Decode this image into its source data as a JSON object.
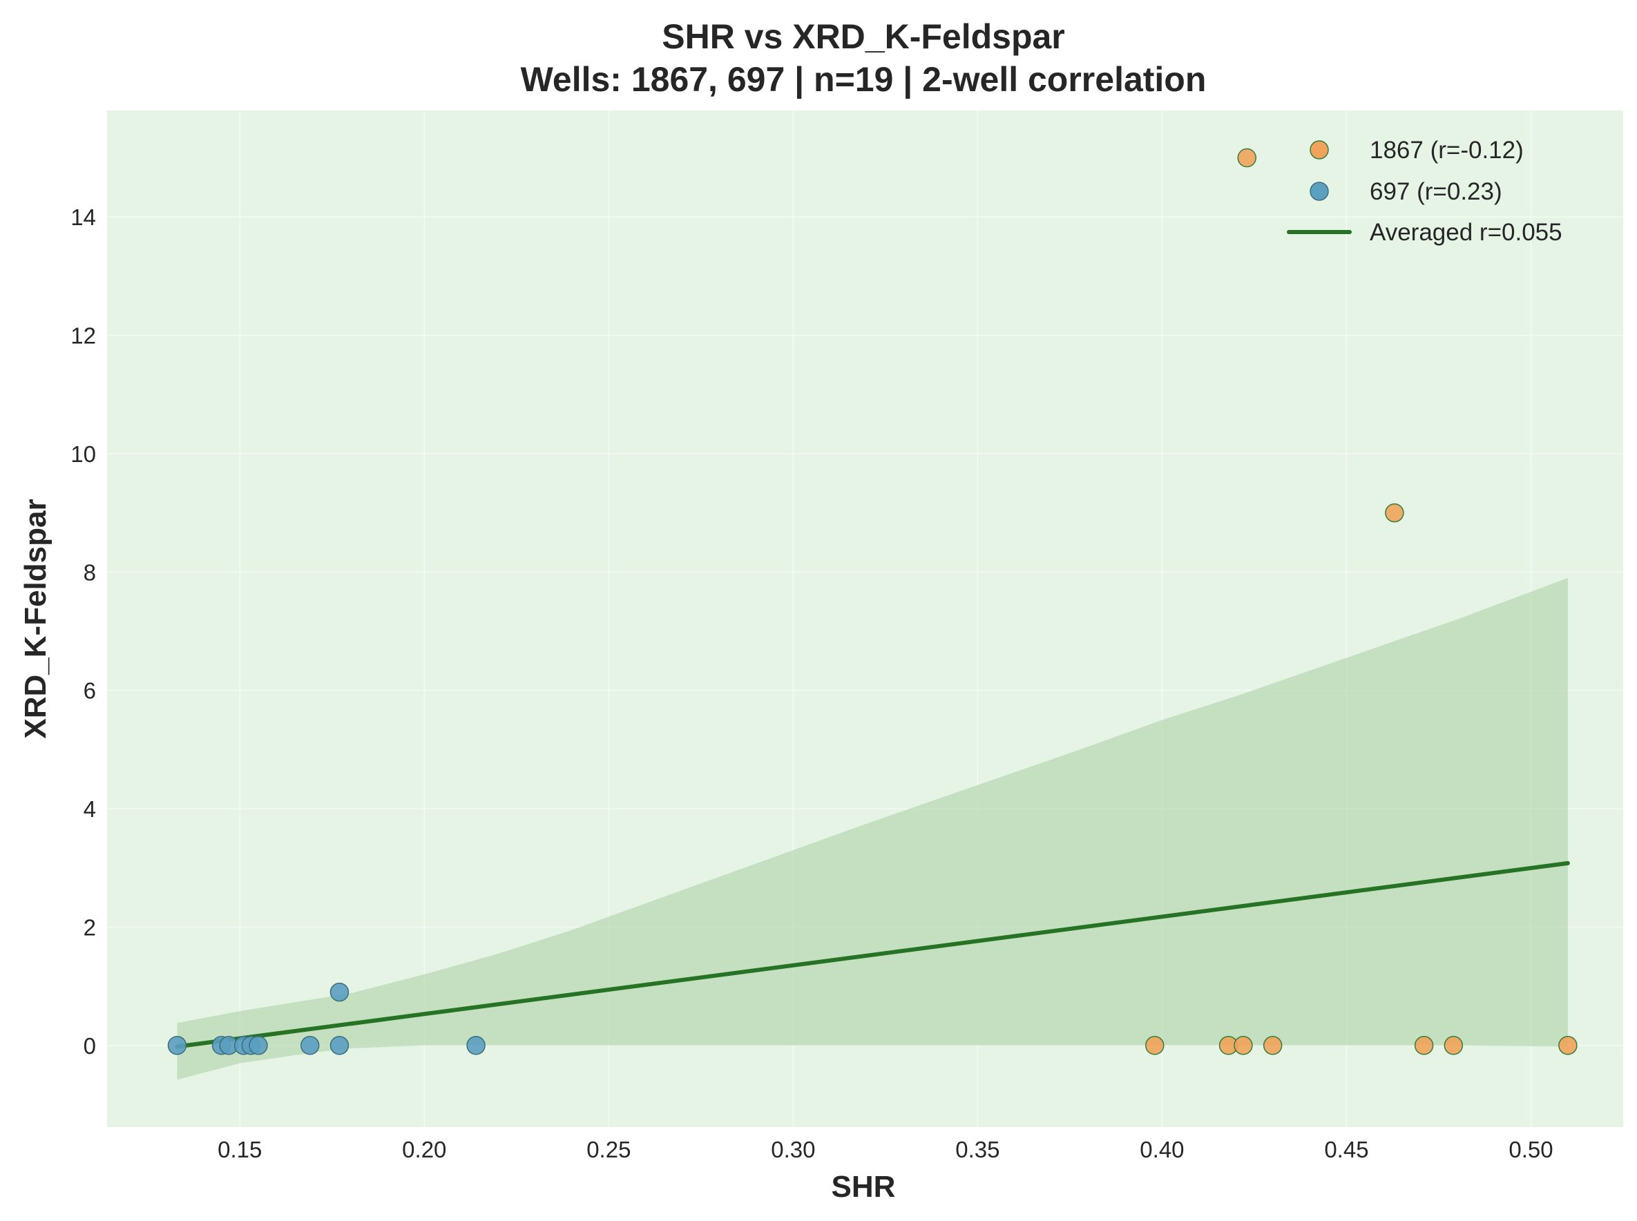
{
  "chart_data": {
    "type": "scatter",
    "title": "SHR vs XRD_K-Feldspar",
    "subtitle": "Wells: 1867, 697 | n=19 | 2-well correlation",
    "xlabel": "SHR",
    "ylabel": "XRD_K-Feldspar",
    "xlim": [
      0.114,
      0.525
    ],
    "ylim": [
      -1.38,
      15.8
    ],
    "x_ticks": [
      0.15,
      0.2,
      0.25,
      0.3,
      0.35,
      0.4,
      0.45,
      0.5
    ],
    "x_tick_labels": [
      "0.15",
      "0.20",
      "0.25",
      "0.30",
      "0.35",
      "0.40",
      "0.45",
      "0.50"
    ],
    "y_ticks": [
      0,
      2,
      4,
      6,
      8,
      10,
      12,
      14
    ],
    "y_tick_labels": [
      "0",
      "2",
      "4",
      "6",
      "8",
      "10",
      "12",
      "14"
    ],
    "grid": true,
    "legend_position": "top-right",
    "background_color": "#e6f4e6",
    "series": [
      {
        "name": "1867 (r=-0.12)",
        "color": "#f0a35a",
        "edge_color": "#3a7a3a",
        "points": [
          {
            "x": 0.398,
            "y": 0.0
          },
          {
            "x": 0.418,
            "y": 0.0
          },
          {
            "x": 0.422,
            "y": 0.0
          },
          {
            "x": 0.423,
            "y": 15.0
          },
          {
            "x": 0.43,
            "y": 0.0
          },
          {
            "x": 0.463,
            "y": 9.0
          },
          {
            "x": 0.471,
            "y": 0.0
          },
          {
            "x": 0.479,
            "y": 0.0
          },
          {
            "x": 0.51,
            "y": 0.0
          }
        ]
      },
      {
        "name": "697 (r=0.23)",
        "color": "#5c9fc1",
        "edge_color": "#3a6e7a",
        "points": [
          {
            "x": 0.133,
            "y": 0.0
          },
          {
            "x": 0.145,
            "y": 0.0
          },
          {
            "x": 0.147,
            "y": 0.0
          },
          {
            "x": 0.151,
            "y": 0.0
          },
          {
            "x": 0.153,
            "y": 0.0
          },
          {
            "x": 0.155,
            "y": 0.0
          },
          {
            "x": 0.169,
            "y": 0.0
          },
          {
            "x": 0.177,
            "y": 0.0
          },
          {
            "x": 0.177,
            "y": 0.9
          },
          {
            "x": 0.214,
            "y": 0.0
          }
        ]
      }
    ],
    "trend_line": {
      "name": "Averaged r=0.055",
      "color": "#267326",
      "x": [
        0.133,
        0.51
      ],
      "y": [
        -0.02,
        3.08
      ]
    },
    "confidence_band": {
      "color": "#a8cfa0",
      "x": [
        0.133,
        0.15,
        0.17,
        0.18,
        0.2,
        0.22,
        0.24,
        0.26,
        0.28,
        0.3,
        0.32,
        0.35,
        0.38,
        0.4,
        0.42,
        0.45,
        0.48,
        0.51
      ],
      "upper": [
        0.38,
        0.58,
        0.78,
        0.88,
        1.2,
        1.55,
        1.95,
        2.4,
        2.85,
        3.3,
        3.75,
        4.4,
        5.05,
        5.5,
        5.9,
        6.55,
        7.2,
        7.9
      ],
      "lower": [
        -0.58,
        -0.3,
        -0.12,
        -0.05,
        0.0,
        0.0,
        0.0,
        0.0,
        0.0,
        0.0,
        0.0,
        0.0,
        0.0,
        0.0,
        0.0,
        0.0,
        0.0,
        -0.02
      ]
    }
  }
}
